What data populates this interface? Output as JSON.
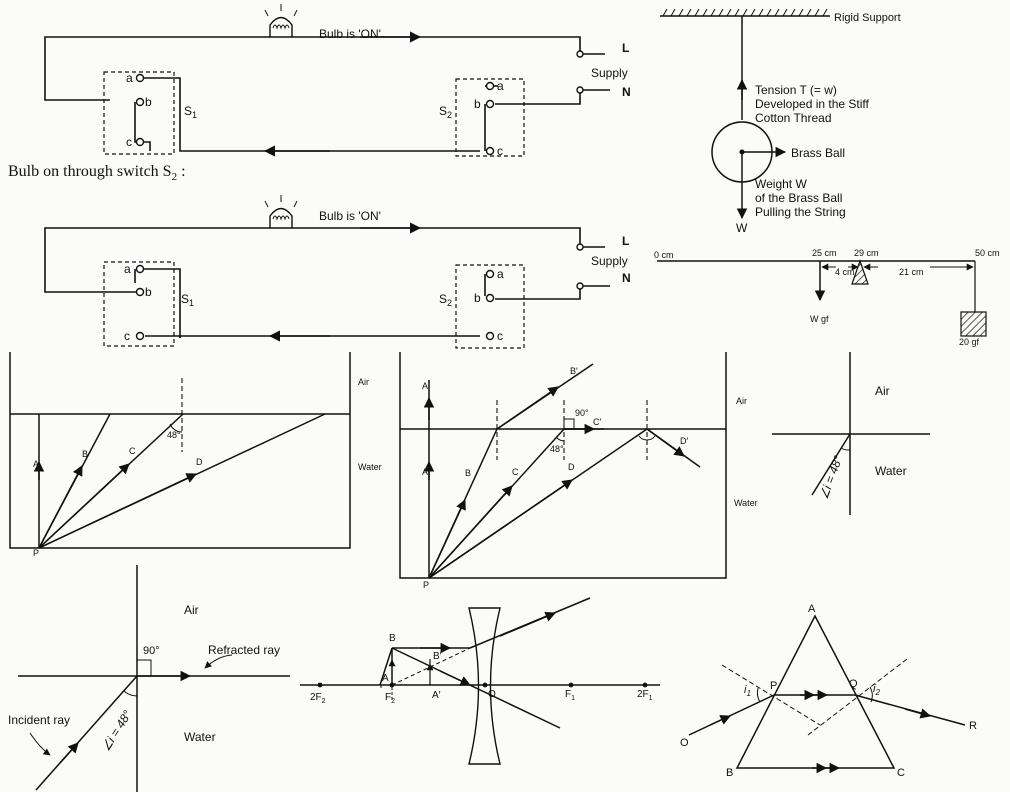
{
  "circuit_top": {
    "bulb_label": "Bulb is 'ON'",
    "L": "L",
    "N": "N",
    "supply": "Supply",
    "s1_a": "a",
    "s1_b": "b",
    "s1_c": "c",
    "s1_label": "S",
    "s1_sub": "1",
    "s2_a": "a",
    "s2_b": "b",
    "s2_c": "c",
    "s2_label": "S",
    "s2_sub": "2"
  },
  "circuit_heading": {
    "text": "Bulb on through switch S",
    "sub": "2",
    "tail": " :"
  },
  "circuit_bottom": {
    "bulb_label": "Bulb is 'ON'",
    "L": "L",
    "N": "N",
    "supply": "Supply",
    "s1_a": "a",
    "s1_b": "b",
    "s1_c": "c",
    "s1_label": "S",
    "s1_sub": "1",
    "s2_a": "a",
    "s2_b": "b",
    "s2_c": "c",
    "s2_label": "S",
    "s2_sub": "2"
  },
  "pendulum": {
    "support": "Rigid Support",
    "tension_1": "Tension T (= w)",
    "tension_2": "Developed in the Stiff",
    "tension_3": "Cotton Thread",
    "ball": "Brass Ball",
    "weight_1": "Weight W",
    "weight_2": "of the Brass Ball",
    "weight_3": "Pulling the String",
    "w": "W"
  },
  "lever": {
    "m0": "0 cm",
    "m25": "25 cm",
    "m29": "29 cm",
    "m50": "50 cm",
    "d4": "4 cm",
    "d21": "21 cm",
    "wgf": "W gf",
    "gf20": "20 gf"
  },
  "tank_left": {
    "air": "Air",
    "water": "Water",
    "A": "A",
    "B": "B",
    "C": "C",
    "D": "D",
    "P": "P",
    "angle": "48°"
  },
  "tank_mid": {
    "air": "Air",
    "water": "Water",
    "A": "A",
    "B": "B",
    "C": "C",
    "D": "D",
    "P": "P",
    "A2": "A′",
    "B2": "B′",
    "C2": "C′",
    "D2": "D′",
    "angle": "48°",
    "right": "90°"
  },
  "crit_right": {
    "air": "Air",
    "water": "Water",
    "angle": "∠i = 48°"
  },
  "crit_bottom": {
    "air": "Air",
    "water": "Water",
    "right": "90°",
    "refracted": "Refracted ray",
    "incident": "Incident ray",
    "angle": "∠i = 48°"
  },
  "lens": {
    "2F2": "2F",
    "2F2_sub": "2",
    "F2": "F",
    "F2_sub": "2",
    "O": "O",
    "F1": "F",
    "F1_sub": "1",
    "2F1": "2F",
    "2F1_sub": "1",
    "A": "A",
    "B": "B",
    "A2": "A′",
    "B2": "B′"
  },
  "prism": {
    "A": "A",
    "B": "B",
    "C": "C",
    "P": "P",
    "Q": "Q",
    "O": "O",
    "R": "R",
    "i1": "i",
    "i1_sub": "1",
    "i2": "i",
    "i2_sub": "2"
  }
}
